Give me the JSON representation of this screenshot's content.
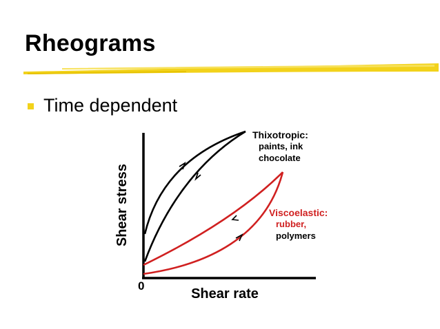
{
  "slide": {
    "title": "Rheograms",
    "bullet": "Time dependent"
  },
  "colors": {
    "title_bar": "#F2D21B",
    "bullet": "#F2D21B",
    "thixotropic": "#000000",
    "viscoelastic": "#D02020",
    "axes": "#000000"
  },
  "diagram": {
    "y_axis_label": "Shear stress",
    "x_axis_label": "Shear rate",
    "origin_label": "0",
    "thixotropic": {
      "title": "Thixotropic:",
      "line1": "paints, ink",
      "line2": "chocolate"
    },
    "viscoelastic": {
      "title": "Viscoelastic:",
      "line1": "rubber,",
      "line2": "polymers"
    }
  }
}
